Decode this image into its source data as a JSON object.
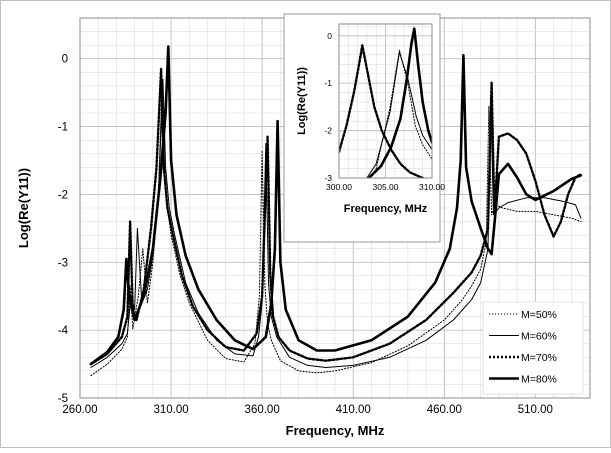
{
  "chart_data": [
    {
      "type": "line",
      "xlabel": "Frequency, MHz",
      "ylabel": "Log(Re(Y11))",
      "xlim": [
        260,
        540
      ],
      "ylim": [
        -5,
        0.6
      ],
      "x_ticks": [
        260,
        310,
        360,
        410,
        460,
        510
      ],
      "x_tick_labels": [
        "260.00",
        "310.00",
        "360.00",
        "410.00",
        "460.00",
        "510.00"
      ],
      "y_ticks": [
        -5,
        -4,
        -3,
        -2,
        -1,
        0
      ],
      "y_tick_labels": [
        "-5",
        "-4",
        "-3",
        "-2",
        "-1",
        "0"
      ],
      "grid": true,
      "legend_position": "bottom-right",
      "series": [
        {
          "name": "M=50%",
          "style": "dotted-thin",
          "x": [
            266,
            275,
            283,
            286,
            287.5,
            289,
            292,
            294.5,
            297,
            300,
            303,
            305,
            306.5,
            308,
            310,
            315,
            320,
            330,
            340,
            350,
            356,
            358.5,
            360,
            361.5,
            363,
            365,
            370,
            380,
            390,
            400,
            420,
            440,
            460,
            470,
            475,
            480,
            483,
            484.5,
            486,
            488,
            492,
            500,
            510,
            520,
            530,
            535
          ],
          "y": [
            -4.67,
            -4.5,
            -4.28,
            -4.1,
            -3.35,
            -3.98,
            -3.5,
            -2.8,
            -3.6,
            -3.0,
            -2.0,
            -0.4,
            -1.6,
            -2.2,
            -2.6,
            -3.2,
            -3.6,
            -4.15,
            -4.42,
            -4.47,
            -4.2,
            -3.5,
            -1.35,
            -3.35,
            -3.9,
            -4.15,
            -4.45,
            -4.6,
            -4.63,
            -4.6,
            -4.48,
            -4.23,
            -3.85,
            -3.55,
            -3.35,
            -3.1,
            -2.7,
            -0.7,
            -2.3,
            -2.15,
            -2.2,
            -2.25,
            -2.25,
            -2.3,
            -2.35,
            -2.4
          ]
        },
        {
          "name": "M=60%",
          "style": "solid-thin",
          "x": [
            266,
            275,
            283,
            286,
            288,
            290,
            291.5,
            294,
            297,
            300,
            303,
            305.5,
            307,
            309,
            312,
            318,
            325,
            335,
            345,
            355,
            358,
            360,
            362,
            363.5,
            365,
            368,
            375,
            385,
            395,
            410,
            430,
            450,
            465,
            475,
            480,
            484,
            485.5,
            487,
            490,
            495,
            505,
            515,
            525,
            532,
            535
          ],
          "y": [
            -4.55,
            -4.4,
            -4.2,
            -4.05,
            -3.5,
            -3.7,
            -2.5,
            -3.6,
            -3.4,
            -2.9,
            -2.1,
            -0.3,
            -1.6,
            -2.2,
            -2.6,
            -3.3,
            -3.75,
            -4.15,
            -4.35,
            -4.38,
            -4.1,
            -3.6,
            -1.25,
            -3.3,
            -3.8,
            -4.1,
            -4.4,
            -4.52,
            -4.55,
            -4.52,
            -4.4,
            -4.15,
            -3.85,
            -3.55,
            -3.3,
            -2.8,
            -0.55,
            -2.3,
            -2.2,
            -2.12,
            -2.05,
            -2.05,
            -2.1,
            -2.15,
            -2.35
          ]
        },
        {
          "name": "M=70%",
          "style": "dotted-thick",
          "x": [
            266,
            275,
            283,
            286,
            287.5,
            289,
            291,
            295,
            299,
            302,
            304.5,
            306,
            308,
            311,
            316,
            322,
            330,
            340,
            350,
            357,
            360,
            363,
            364.5,
            366,
            369,
            375,
            385,
            395,
            410,
            430,
            450,
            465,
            475,
            480,
            484,
            486,
            487.5,
            490,
            495,
            500,
            505,
            510,
            515,
            520,
            524,
            528,
            532,
            535
          ],
          "y": [
            -4.5,
            -4.35,
            -4.1,
            -3.8,
            -2.4,
            -3.7,
            -3.85,
            -3.4,
            -2.5,
            -1.6,
            -0.15,
            -1.6,
            -2.2,
            -2.6,
            -3.2,
            -3.65,
            -4.0,
            -4.25,
            -4.3,
            -4.05,
            -3.5,
            -1.15,
            -3.2,
            -3.8,
            -4.1,
            -4.3,
            -4.42,
            -4.45,
            -4.4,
            -4.2,
            -3.85,
            -3.45,
            -3.15,
            -2.9,
            -2.5,
            -0.35,
            -2.3,
            -1.15,
            -1.1,
            -1.2,
            -1.4,
            -1.8,
            -2.3,
            -2.62,
            -2.4,
            -2.0,
            -1.75,
            -1.7
          ]
        },
        {
          "name": "M=80%",
          "style": "solid-thick",
          "x": [
            266,
            275,
            281,
            284,
            285.5,
            287,
            290,
            295,
            300,
            304,
            307,
            308.5,
            310,
            313,
            318,
            325,
            335,
            345,
            355,
            362,
            365,
            367,
            368.5,
            370,
            373,
            380,
            390,
            400,
            420,
            440,
            455,
            463,
            467,
            469,
            470.5,
            472,
            475,
            480,
            484,
            486,
            488,
            490,
            495,
            500,
            505,
            510,
            520,
            530,
            535
          ],
          "y": [
            -4.5,
            -4.32,
            -4.1,
            -3.7,
            -2.95,
            -3.5,
            -3.85,
            -3.5,
            -2.8,
            -1.8,
            -0.8,
            0.18,
            -1.5,
            -2.3,
            -2.9,
            -3.4,
            -3.85,
            -4.15,
            -4.28,
            -4.1,
            -3.6,
            -2.8,
            -0.92,
            -3.0,
            -3.7,
            -4.15,
            -4.3,
            -4.3,
            -4.15,
            -3.8,
            -3.3,
            -2.8,
            -2.2,
            -1.5,
            0.05,
            -1.6,
            -2.1,
            -2.5,
            -2.8,
            -2.88,
            -2.3,
            -1.7,
            -1.55,
            -1.75,
            -2.0,
            -2.08,
            -1.95,
            -1.77,
            -1.72
          ]
        }
      ]
    },
    {
      "type": "line",
      "inset": true,
      "xlabel": "Frequency, MHz",
      "ylabel": "Log(Re(Y11))",
      "xlim": [
        300,
        310
      ],
      "ylim": [
        -3,
        0.25
      ],
      "x_ticks": [
        300,
        305,
        310
      ],
      "x_tick_labels": [
        "300.00",
        "305.00",
        "310.00"
      ],
      "y_ticks": [
        -3,
        -2,
        -1,
        0
      ],
      "y_tick_labels": [
        "-3",
        "-2",
        "-1",
        "0"
      ],
      "grid": true,
      "series": [
        {
          "name": "M=50%",
          "style": "dotted-thin",
          "x": [
            300,
            302,
            304,
            305.5,
            306.5,
            307.4,
            308.2,
            309,
            310
          ],
          "y": [
            -3.7,
            -3.4,
            -2.8,
            -1.5,
            -0.3,
            -1.0,
            -1.9,
            -2.3,
            -2.6
          ]
        },
        {
          "name": "M=60%",
          "style": "solid-thin",
          "x": [
            300,
            302,
            304,
            305.5,
            306.5,
            307.4,
            308.3,
            309,
            310
          ],
          "y": [
            -3.6,
            -3.3,
            -2.7,
            -1.6,
            -0.35,
            -0.9,
            -1.7,
            -2.1,
            -2.4
          ]
        },
        {
          "name": "M=70%",
          "style": "dotted-thick",
          "x": [
            300,
            300.8,
            301.6,
            302.2,
            302.5,
            303,
            303.8,
            304.6,
            305.6,
            306.6,
            307.6,
            309,
            310
          ],
          "y": [
            -2.45,
            -1.9,
            -1.2,
            -0.55,
            -0.2,
            -0.7,
            -1.5,
            -2.0,
            -2.4,
            -2.7,
            -2.88,
            -3.0,
            -3.05
          ],
          "note": "highlighted peak near 302.5 MHz"
        },
        {
          "name": "M=80%",
          "style": "solid-thick",
          "x": [
            303.2,
            304.5,
            305.6,
            306.6,
            307.3,
            307.8,
            308.1,
            308.5,
            309,
            309.6,
            310
          ],
          "y": [
            -3.0,
            -2.75,
            -2.35,
            -1.75,
            -0.9,
            -0.15,
            0.15,
            -0.6,
            -1.4,
            -2.0,
            -2.25
          ]
        }
      ]
    }
  ]
}
